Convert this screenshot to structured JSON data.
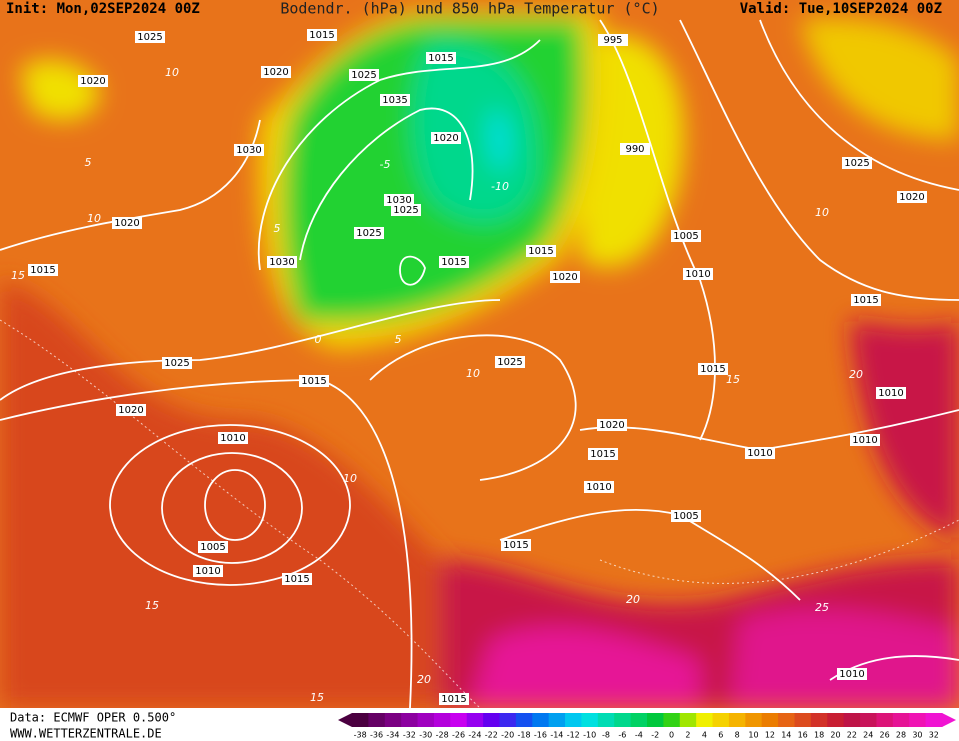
{
  "header": {
    "init": "Init: Mon,02SEP2024 00Z",
    "title": "Bodendr. (hPa) und 850 hPa Temperatur (°C)",
    "valid": "Valid: Tue,10SEP2024 00Z"
  },
  "footer": {
    "source": "Data: ECMWF OPER 0.500°",
    "website": "WWW.WETTERZENTRALE.DE"
  },
  "isobar_labels": [
    1025,
    1015,
    1020,
    1020,
    1025,
    1015,
    995,
    1035,
    1020,
    1030,
    990,
    1025,
    1030,
    1025,
    1020,
    1020,
    1025,
    1005,
    1030,
    1015,
    1015,
    1015,
    1020,
    1010,
    1015,
    1025,
    1015,
    1025,
    1015,
    1020,
    1010,
    1010,
    1020,
    1015,
    1010,
    1010,
    1010,
    1005,
    1005,
    1015,
    1010,
    1015,
    1010,
    1015
  ],
  "temperature_labels": [
    10,
    5,
    -5,
    -10,
    5,
    0,
    5,
    10,
    15,
    10,
    10,
    15,
    20,
    10,
    15,
    20,
    25,
    15,
    20
  ],
  "colorbar": {
    "values": [
      -38,
      -36,
      -34,
      -32,
      -30,
      -28,
      -26,
      -24,
      -22,
      -20,
      -18,
      -16,
      -14,
      -12,
      -10,
      -8,
      -6,
      -4,
      -2,
      0,
      2,
      4,
      6,
      8,
      10,
      12,
      14,
      16,
      18,
      20,
      22,
      24,
      26,
      28,
      30,
      32
    ],
    "colors": [
      "#4b0040",
      "#640064",
      "#7a0082",
      "#8c00a0",
      "#a000c0",
      "#b400dc",
      "#c800f0",
      "#9600f0",
      "#6400f0",
      "#3c28f0",
      "#1450f0",
      "#0078f0",
      "#00a0f0",
      "#00c8f0",
      "#00e0e0",
      "#00dcb4",
      "#00d88c",
      "#00d264",
      "#00c83c",
      "#32d214",
      "#a0e600",
      "#f0f000",
      "#f5d200",
      "#f5b400",
      "#f09600",
      "#eb7d00",
      "#e66414",
      "#dc4b1e",
      "#d23228",
      "#c81e32",
      "#be1446",
      "#c8145a",
      "#dc1478",
      "#e61496",
      "#f014b4",
      "#f014d2"
    ]
  }
}
